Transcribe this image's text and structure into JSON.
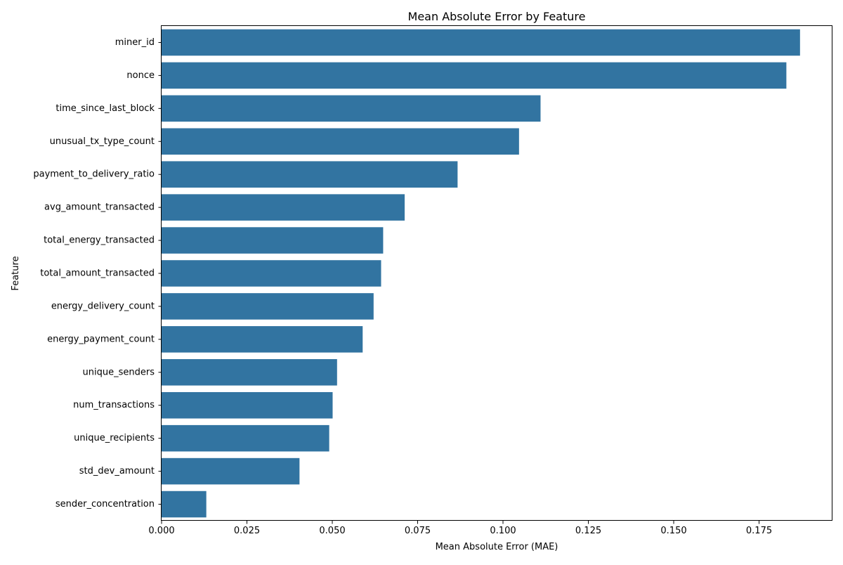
{
  "chart_data": {
    "type": "bar",
    "orientation": "horizontal",
    "title": "Mean Absolute Error by Feature",
    "xlabel": "Mean Absolute Error (MAE)",
    "ylabel": "Feature",
    "xlim": [
      0,
      0.1965
    ],
    "xticks": [
      0.0,
      0.025,
      0.05,
      0.075,
      0.1,
      0.125,
      0.15,
      0.175
    ],
    "xtick_labels": [
      "0.000",
      "0.025",
      "0.050",
      "0.075",
      "0.100",
      "0.125",
      "0.150",
      "0.175"
    ],
    "grid": false,
    "bar_color": "#3274a1",
    "categories": [
      "miner_id",
      "nonce",
      "time_since_last_block",
      "unusual_tx_type_count",
      "payment_to_delivery_ratio",
      "avg_amount_transacted",
      "total_energy_transacted",
      "total_amount_transacted",
      "energy_delivery_count",
      "energy_payment_count",
      "unique_senders",
      "num_transactions",
      "unique_recipients",
      "std_dev_amount",
      "sender_concentration"
    ],
    "values": [
      0.187,
      0.183,
      0.111,
      0.1047,
      0.0867,
      0.0712,
      0.0649,
      0.0643,
      0.0621,
      0.0589,
      0.0514,
      0.0501,
      0.0491,
      0.0404,
      0.0131
    ]
  }
}
